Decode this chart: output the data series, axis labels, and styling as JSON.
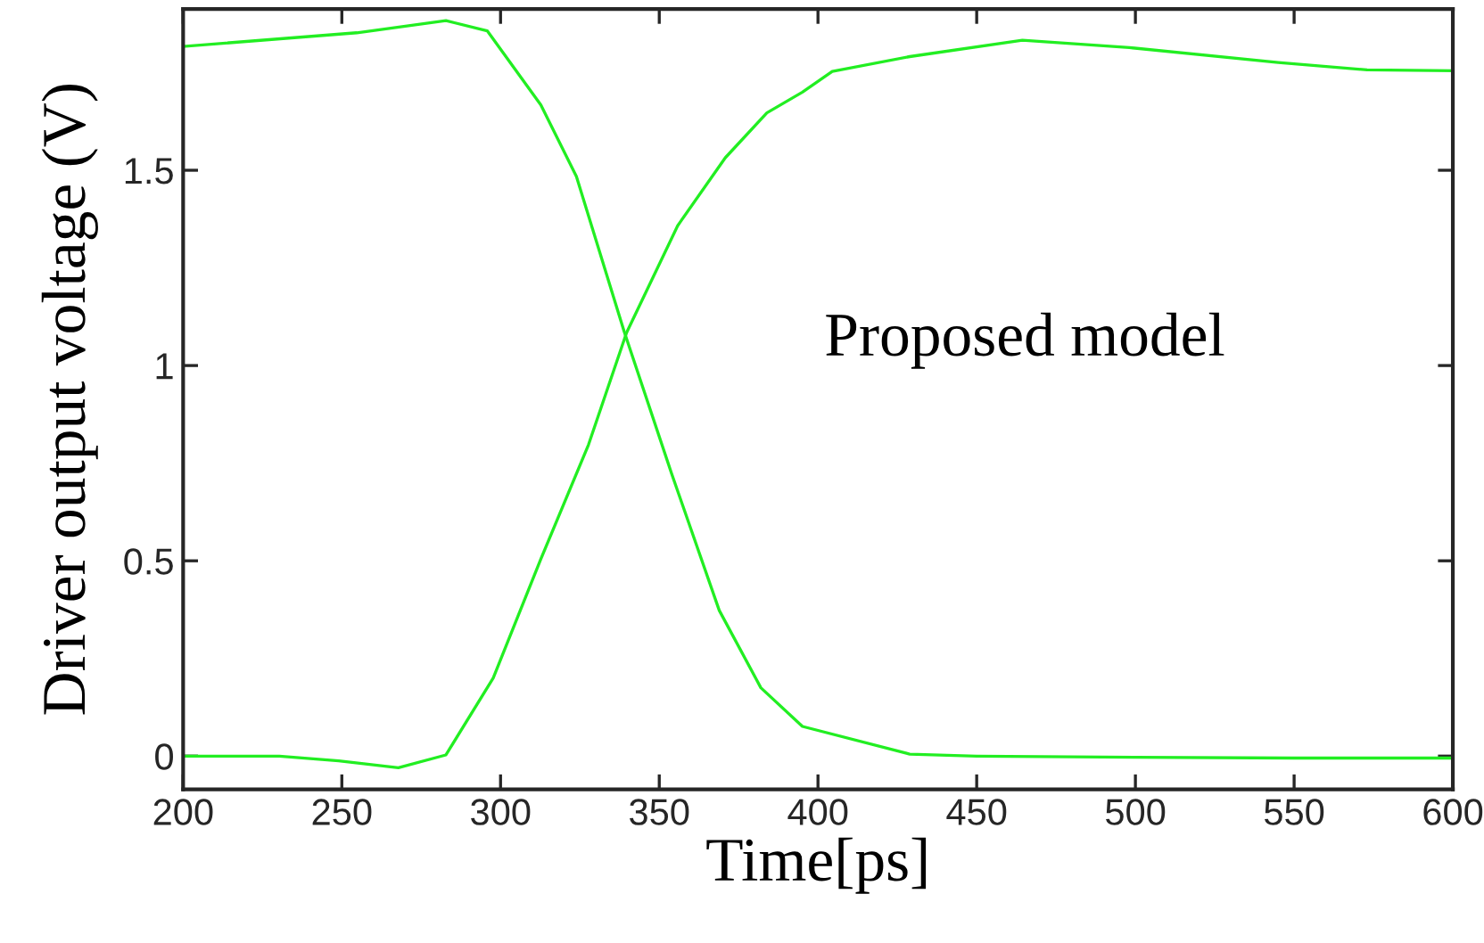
{
  "chart_data": {
    "type": "line",
    "xlabel": "Time[ps]",
    "ylabel": "Driver output voltage (V)",
    "annotations": [
      "Proposed model"
    ],
    "series": [
      {
        "color": "#22ee22",
        "x": [
          200,
          254.7,
          282.8,
          295.8,
          312.7,
          323.9,
          338.9,
          353.9,
          368.9,
          382,
          395.1,
          428.9,
          450,
          500,
          550,
          600
        ],
        "values": [
          1.817,
          1.852,
          1.883,
          1.857,
          1.667,
          1.484,
          1.088,
          0.723,
          0.373,
          0.175,
          0.076,
          0.005,
          0.0,
          -0.003,
          -0.005,
          -0.005
        ]
      },
      {
        "color": "#22ee22",
        "x": [
          200,
          230.3,
          249,
          267.8,
          282.8,
          297.7,
          312.7,
          327.7,
          339.7,
          355.8,
          370.8,
          383.9,
          395.1,
          404.5,
          428.9,
          464.4,
          498.1,
          545,
          573,
          600
        ],
        "values": [
          0.0,
          0.0,
          -0.012,
          -0.03,
          0.003,
          0.2,
          0.505,
          0.797,
          1.084,
          1.358,
          1.532,
          1.647,
          1.7,
          1.753,
          1.791,
          1.833,
          1.814,
          1.776,
          1.757,
          1.755
        ]
      }
    ],
    "xlim": [
      200,
      600
    ],
    "xticks": [
      200,
      250,
      300,
      350,
      400,
      450,
      500,
      550,
      600
    ],
    "ylim": [
      -0.085,
      1.913
    ],
    "yticks": [
      0,
      0.5,
      1,
      1.5
    ],
    "grid": false,
    "legend": false,
    "marker": "none",
    "line_style": "solid"
  }
}
